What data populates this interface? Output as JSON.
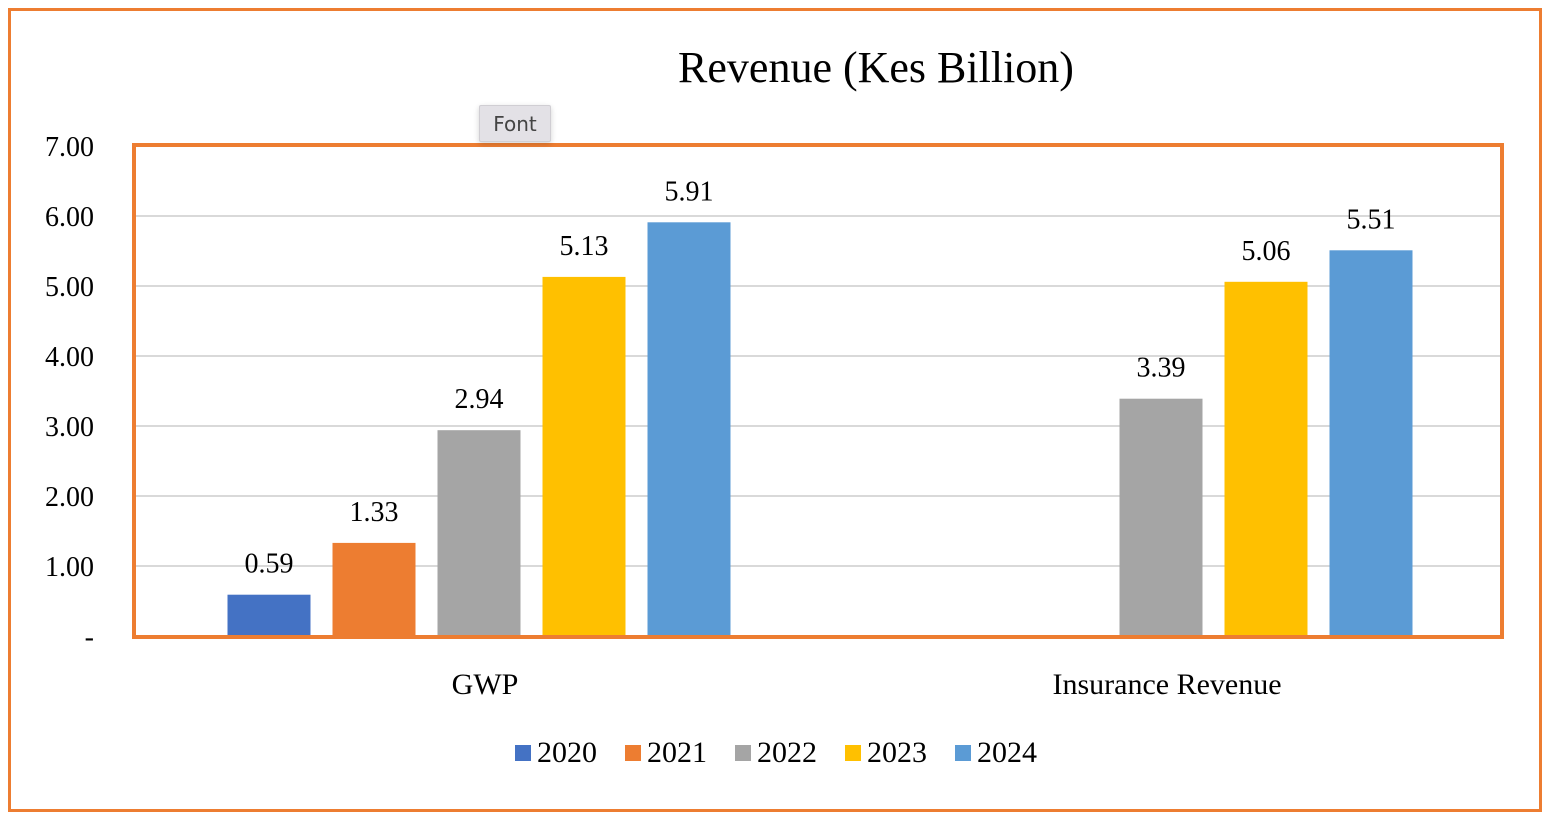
{
  "tooltip": {
    "label": "Font"
  },
  "chart_data": {
    "type": "bar",
    "title": "Revenue (Kes Billion)",
    "xlabel": "",
    "ylabel": "",
    "ylim": [
      0,
      7
    ],
    "yticks": [
      0,
      1,
      2,
      3,
      4,
      5,
      6,
      7
    ],
    "ytick_labels": [
      "-",
      "1.00",
      "2.00",
      "3.00",
      "4.00",
      "5.00",
      "6.00",
      "7.00"
    ],
    "grid": true,
    "legend_position": "bottom",
    "categories": [
      "GWP",
      "Insurance Revenue"
    ],
    "series": [
      {
        "name": "2020",
        "color": "#4472C4",
        "values": [
          0.59,
          null
        ],
        "labels": [
          "0.59",
          null
        ]
      },
      {
        "name": "2021",
        "color": "#ED7D31",
        "values": [
          1.33,
          null
        ],
        "labels": [
          "1.33",
          null
        ]
      },
      {
        "name": "2022",
        "color": "#A5A5A5",
        "values": [
          2.94,
          3.39
        ],
        "labels": [
          "2.94",
          "3.39"
        ]
      },
      {
        "name": "2023",
        "color": "#FFC000",
        "values": [
          5.13,
          5.06
        ],
        "labels": [
          "5.13",
          "5.06"
        ]
      },
      {
        "name": "2024",
        "color": "#5B9BD5",
        "values": [
          5.91,
          5.51
        ],
        "labels": [
          "5.91",
          "5.51"
        ]
      }
    ],
    "frame_color": "#ED7D31",
    "gridline_color": "#D9D9D9"
  }
}
